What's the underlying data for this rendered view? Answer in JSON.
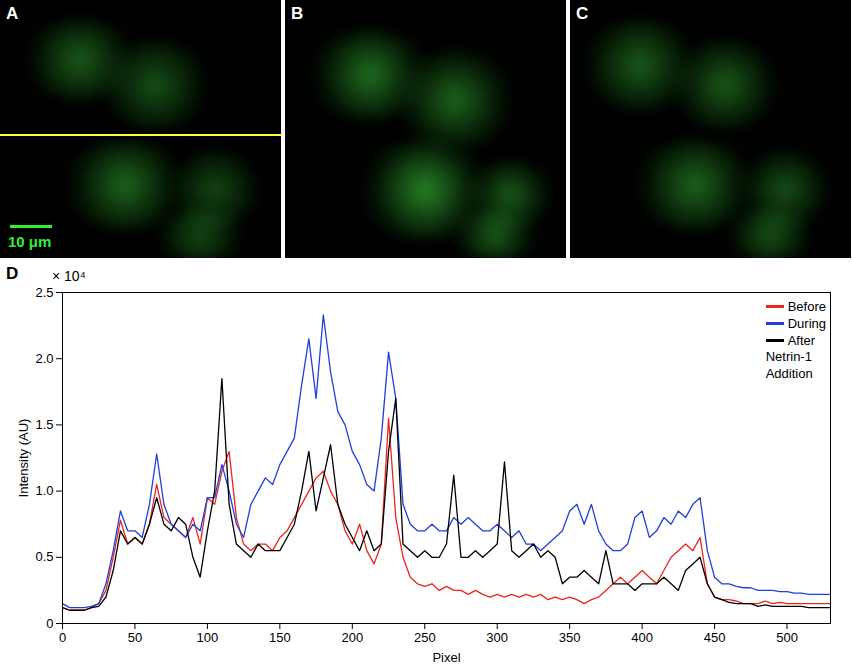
{
  "image_panels": [
    {
      "label": "A",
      "scale_bar": "10 μm"
    },
    {
      "label": "B"
    },
    {
      "label": "C"
    }
  ],
  "chart_data": {
    "type": "line",
    "panel_label": "D",
    "x_label": "Pixel",
    "y_label": "Intensity (AU)",
    "annotations": [
      "× 10⁴",
      "Netrin-1",
      "Addition"
    ],
    "legend": "upper right",
    "grid": false,
    "xlim": [
      0,
      530
    ],
    "xticks": [
      0,
      50,
      100,
      150,
      200,
      250,
      300,
      350,
      400,
      450,
      500
    ],
    "ylim": [
      0,
      2.5
    ],
    "yticks": [
      0,
      0.5,
      {
        "value": 1,
        "label": "1.0"
      },
      1.5,
      {
        "value": 2,
        "label": "2.0"
      },
      2.5
    ],
    "x": [
      0,
      5,
      10,
      15,
      20,
      25,
      30,
      35,
      40,
      45,
      50,
      55,
      60,
      65,
      70,
      75,
      80,
      85,
      90,
      95,
      100,
      105,
      110,
      115,
      120,
      125,
      130,
      135,
      140,
      145,
      150,
      155,
      160,
      165,
      170,
      175,
      180,
      185,
      190,
      195,
      200,
      205,
      210,
      215,
      220,
      225,
      230,
      235,
      240,
      245,
      250,
      255,
      260,
      265,
      270,
      275,
      280,
      285,
      290,
      295,
      300,
      305,
      310,
      315,
      320,
      325,
      330,
      335,
      340,
      345,
      350,
      355,
      360,
      365,
      370,
      375,
      380,
      385,
      390,
      395,
      400,
      405,
      410,
      415,
      420,
      425,
      430,
      435,
      440,
      445,
      450,
      455,
      460,
      465,
      470,
      475,
      480,
      485,
      490,
      495,
      500,
      505,
      510,
      515,
      520,
      525,
      530
    ],
    "series": [
      {
        "name": "Before",
        "color": "#e8261c",
        "values": [
          0.12,
          0.1,
          0.1,
          0.1,
          0.12,
          0.15,
          0.25,
          0.5,
          0.78,
          0.6,
          0.65,
          0.6,
          0.75,
          1.05,
          0.8,
          0.75,
          0.7,
          0.65,
          0.8,
          0.6,
          0.95,
          0.9,
          1.15,
          1.3,
          0.8,
          0.6,
          0.55,
          0.6,
          0.6,
          0.55,
          0.65,
          0.7,
          0.8,
          0.9,
          1.0,
          1.1,
          1.15,
          1.0,
          0.9,
          0.7,
          0.6,
          0.75,
          0.55,
          0.45,
          0.6,
          1.55,
          0.8,
          0.5,
          0.35,
          0.3,
          0.28,
          0.3,
          0.25,
          0.28,
          0.25,
          0.25,
          0.22,
          0.25,
          0.22,
          0.2,
          0.22,
          0.2,
          0.22,
          0.2,
          0.22,
          0.2,
          0.22,
          0.18,
          0.2,
          0.18,
          0.2,
          0.18,
          0.15,
          0.18,
          0.2,
          0.25,
          0.3,
          0.35,
          0.3,
          0.35,
          0.4,
          0.35,
          0.3,
          0.4,
          0.5,
          0.55,
          0.6,
          0.55,
          0.65,
          0.3,
          0.2,
          0.18,
          0.18,
          0.17,
          0.15,
          0.15,
          0.15,
          0.17,
          0.15,
          0.16,
          0.15,
          0.15,
          0.15,
          0.15,
          0.15,
          0.15,
          0.15
        ]
      },
      {
        "name": "During",
        "color": "#1f3fe0",
        "values": [
          0.15,
          0.12,
          0.12,
          0.12,
          0.13,
          0.15,
          0.3,
          0.55,
          0.85,
          0.7,
          0.7,
          0.65,
          0.9,
          1.28,
          0.9,
          0.75,
          0.7,
          0.65,
          0.75,
          0.7,
          0.95,
          0.95,
          1.2,
          1.0,
          0.75,
          0.65,
          0.9,
          1.0,
          1.1,
          1.05,
          1.2,
          1.3,
          1.4,
          1.8,
          2.15,
          1.7,
          2.33,
          1.9,
          1.6,
          1.5,
          1.3,
          1.2,
          1.05,
          1.0,
          1.4,
          2.05,
          1.7,
          0.9,
          0.75,
          0.7,
          0.7,
          0.75,
          0.7,
          0.7,
          0.8,
          0.75,
          0.8,
          0.75,
          0.7,
          0.7,
          0.75,
          0.7,
          0.65,
          0.7,
          0.6,
          0.6,
          0.55,
          0.6,
          0.65,
          0.7,
          0.85,
          0.9,
          0.75,
          0.9,
          0.7,
          0.6,
          0.55,
          0.55,
          0.6,
          0.8,
          0.85,
          0.65,
          0.7,
          0.8,
          0.75,
          0.85,
          0.8,
          0.9,
          0.95,
          0.55,
          0.35,
          0.3,
          0.3,
          0.28,
          0.27,
          0.27,
          0.25,
          0.25,
          0.25,
          0.24,
          0.24,
          0.23,
          0.23,
          0.22,
          0.22,
          0.22,
          0.22
        ]
      },
      {
        "name": "After",
        "color": "#000000",
        "values": [
          0.12,
          0.1,
          0.1,
          0.1,
          0.12,
          0.13,
          0.2,
          0.4,
          0.7,
          0.6,
          0.65,
          0.6,
          0.75,
          0.95,
          0.75,
          0.7,
          0.8,
          0.75,
          0.5,
          0.35,
          0.7,
          1.0,
          1.85,
          0.9,
          0.6,
          0.55,
          0.5,
          0.6,
          0.55,
          0.55,
          0.55,
          0.65,
          0.75,
          1.0,
          1.3,
          0.85,
          1.1,
          1.35,
          0.9,
          0.75,
          0.65,
          0.55,
          0.7,
          0.55,
          0.6,
          1.3,
          1.7,
          0.6,
          0.55,
          0.5,
          0.55,
          0.5,
          0.5,
          0.6,
          1.12,
          0.5,
          0.5,
          0.55,
          0.5,
          0.55,
          0.6,
          1.22,
          0.55,
          0.5,
          0.55,
          0.6,
          0.5,
          0.55,
          0.5,
          0.3,
          0.35,
          0.35,
          0.4,
          0.35,
          0.3,
          0.55,
          0.3,
          0.3,
          0.3,
          0.25,
          0.3,
          0.3,
          0.3,
          0.35,
          0.3,
          0.25,
          0.4,
          0.45,
          0.5,
          0.3,
          0.2,
          0.18,
          0.16,
          0.15,
          0.15,
          0.15,
          0.13,
          0.14,
          0.13,
          0.13,
          0.13,
          0.13,
          0.13,
          0.12,
          0.12,
          0.12,
          0.12
        ]
      }
    ]
  }
}
